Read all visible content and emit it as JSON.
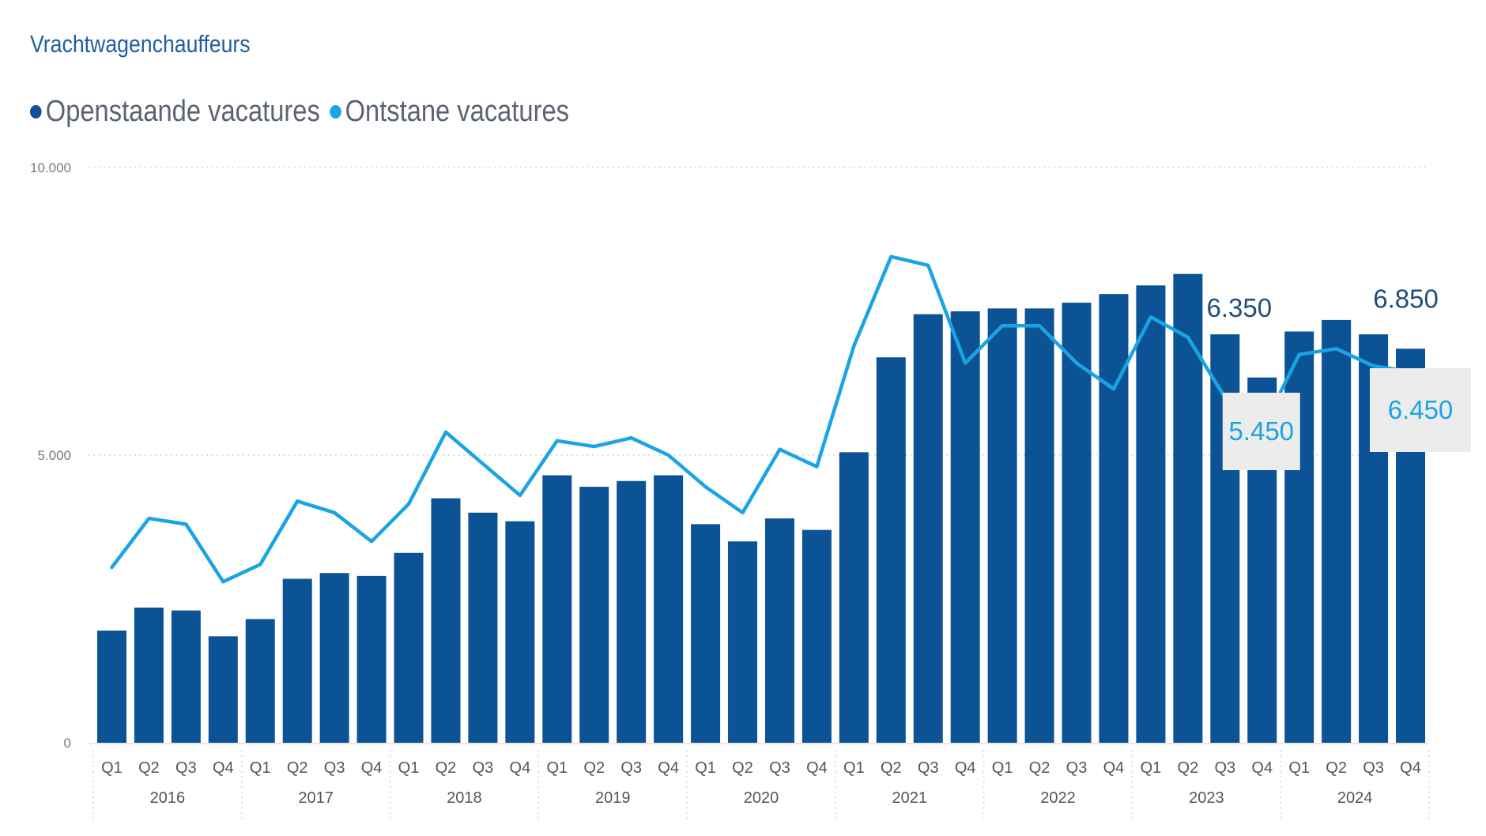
{
  "chart_data": {
    "type": "bar",
    "title": "Vrachtwagenchauffeurs",
    "ylim": [
      0,
      10000
    ],
    "y_ticks": [
      "0",
      "5.000",
      "10.000"
    ],
    "y_tick_values": [
      0,
      5000,
      10000
    ],
    "quarters": [
      "Q1",
      "Q2",
      "Q3",
      "Q4",
      "Q1",
      "Q2",
      "Q3",
      "Q4",
      "Q1",
      "Q2",
      "Q3",
      "Q4",
      "Q1",
      "Q2",
      "Q3",
      "Q4",
      "Q1",
      "Q2",
      "Q3",
      "Q4",
      "Q1",
      "Q2",
      "Q3",
      "Q4",
      "Q1",
      "Q2",
      "Q3",
      "Q4",
      "Q1",
      "Q2",
      "Q3",
      "Q4",
      "Q1",
      "Q2",
      "Q3",
      "Q4"
    ],
    "years": [
      "2016",
      "2017",
      "2018",
      "2019",
      "2020",
      "2021",
      "2022",
      "2023",
      "2024"
    ],
    "grid": "horizontal dotted",
    "legend_position": "top-left",
    "series": [
      {
        "name": "Openstaande vacatures",
        "type": "bar",
        "color": "#0b5394",
        "values": [
          1950,
          2350,
          2300,
          1850,
          2150,
          2850,
          2950,
          2900,
          3300,
          4250,
          4000,
          3850,
          4650,
          4450,
          4550,
          4650,
          3800,
          3500,
          3900,
          3700,
          5050,
          6700,
          7450,
          7500,
          7550,
          7550,
          7650,
          7800,
          7950,
          8150,
          7100,
          6350,
          7150,
          7350,
          7100,
          6850
        ]
      },
      {
        "name": "Ontstane vacatures",
        "type": "line",
        "color": "#1ba4e4",
        "values": [
          3050,
          3900,
          3800,
          2800,
          3100,
          4200,
          4000,
          3500,
          4150,
          5400,
          4850,
          4300,
          5250,
          5150,
          5300,
          5000,
          4450,
          4000,
          5100,
          4800,
          6900,
          8450,
          8300,
          6600,
          7250,
          7250,
          6600,
          6150,
          7400,
          7050,
          6000,
          5450,
          6750,
          6850,
          6550,
          6450
        ]
      }
    ],
    "annotations": {
      "bar_q3_2023": "6.350",
      "bar_q4_2024": "6.850",
      "line_q4_2023": "5.450",
      "line_q4_2024": "6.450"
    }
  }
}
